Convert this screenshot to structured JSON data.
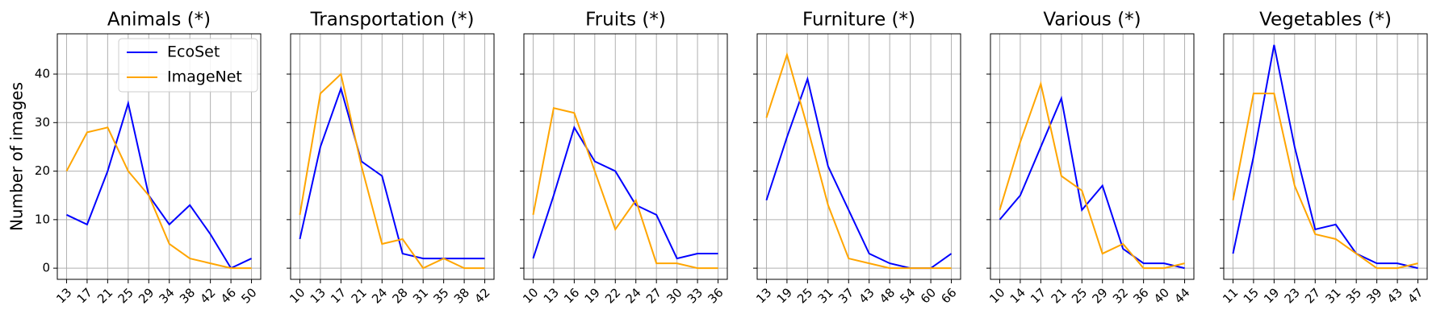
{
  "chart_data": [
    {
      "type": "line",
      "title": "Animals (*)",
      "y_label": "Number of images",
      "legend": "upper right",
      "grid": true,
      "categories": [
        "13",
        "17",
        "21",
        "25",
        "29",
        "34",
        "38",
        "42",
        "46",
        "50"
      ],
      "series": [
        {
          "name": "EcoSet",
          "color": "blue",
          "values": [
            11,
            9,
            20,
            34,
            15,
            9,
            13,
            7,
            0,
            2
          ]
        },
        {
          "name": "ImageNet",
          "color": "orange",
          "values": [
            20,
            28,
            29,
            20,
            15,
            5,
            2,
            1,
            0,
            0
          ]
        }
      ],
      "ylim": [
        -2.3,
        48.3
      ],
      "yticks": [
        0,
        10,
        20,
        30,
        40
      ]
    },
    {
      "type": "line",
      "title": "Transportation (*)",
      "grid": true,
      "categories": [
        "10",
        "13",
        "17",
        "21",
        "24",
        "28",
        "31",
        "35",
        "38",
        "42"
      ],
      "series": [
        {
          "name": "EcoSet",
          "color": "blue",
          "values": [
            6,
            25,
            37,
            22,
            19,
            3,
            2,
            2,
            2,
            2
          ]
        },
        {
          "name": "ImageNet",
          "color": "orange",
          "values": [
            11,
            36,
            40,
            21,
            5,
            6,
            0,
            2,
            0,
            0
          ]
        }
      ],
      "ylim": [
        -2.3,
        48.3
      ],
      "yticks": [
        0,
        10,
        20,
        30,
        40
      ]
    },
    {
      "type": "line",
      "title": "Fruits (*)",
      "grid": true,
      "categories": [
        "10",
        "13",
        "16",
        "19",
        "22",
        "24",
        "27",
        "30",
        "33",
        "36"
      ],
      "series": [
        {
          "name": "EcoSet",
          "color": "blue",
          "values": [
            2,
            15,
            29,
            22,
            20,
            13,
            11,
            2,
            3,
            3
          ]
        },
        {
          "name": "ImageNet",
          "color": "orange",
          "values": [
            11,
            33,
            32,
            20,
            8,
            14,
            1,
            1,
            0,
            0
          ]
        }
      ],
      "ylim": [
        -2.3,
        48.3
      ],
      "yticks": [
        0,
        10,
        20,
        30,
        40
      ]
    },
    {
      "type": "line",
      "title": "Furniture (*)",
      "grid": true,
      "categories": [
        "13",
        "19",
        "25",
        "31",
        "37",
        "43",
        "48",
        "54",
        "60",
        "66"
      ],
      "series": [
        {
          "name": "EcoSet",
          "color": "blue",
          "values": [
            14,
            27,
            39,
            21,
            12,
            3,
            1,
            0,
            0,
            3
          ]
        },
        {
          "name": "ImageNet",
          "color": "orange",
          "values": [
            31,
            44,
            29,
            13,
            2,
            1,
            0,
            0,
            0,
            0
          ]
        }
      ],
      "ylim": [
        -2.3,
        48.3
      ],
      "yticks": [
        0,
        10,
        20,
        30,
        40
      ]
    },
    {
      "type": "line",
      "title": "Various (*)",
      "grid": true,
      "categories": [
        "10",
        "14",
        "17",
        "21",
        "25",
        "29",
        "32",
        "36",
        "40",
        "44"
      ],
      "series": [
        {
          "name": "EcoSet",
          "color": "blue",
          "values": [
            10,
            15,
            25,
            35,
            12,
            17,
            4,
            1,
            1,
            0
          ]
        },
        {
          "name": "ImageNet",
          "color": "orange",
          "values": [
            12,
            26,
            38,
            19,
            16,
            3,
            5,
            0,
            0,
            1
          ]
        }
      ],
      "ylim": [
        -2.3,
        48.3
      ],
      "yticks": [
        0,
        10,
        20,
        30,
        40
      ]
    },
    {
      "type": "line",
      "title": "Vegetables (*)",
      "grid": true,
      "categories": [
        "11",
        "15",
        "19",
        "23",
        "27",
        "31",
        "35",
        "39",
        "43",
        "47"
      ],
      "series": [
        {
          "name": "EcoSet",
          "color": "blue",
          "values": [
            3,
            23,
            46,
            25,
            8,
            9,
            3,
            1,
            1,
            0
          ]
        },
        {
          "name": "ImageNet",
          "color": "orange",
          "values": [
            14,
            36,
            36,
            17,
            7,
            6,
            3,
            0,
            0,
            1
          ]
        }
      ],
      "ylim": [
        -2.3,
        48.3
      ],
      "yticks": [
        0,
        10,
        20,
        30,
        40
      ]
    }
  ]
}
